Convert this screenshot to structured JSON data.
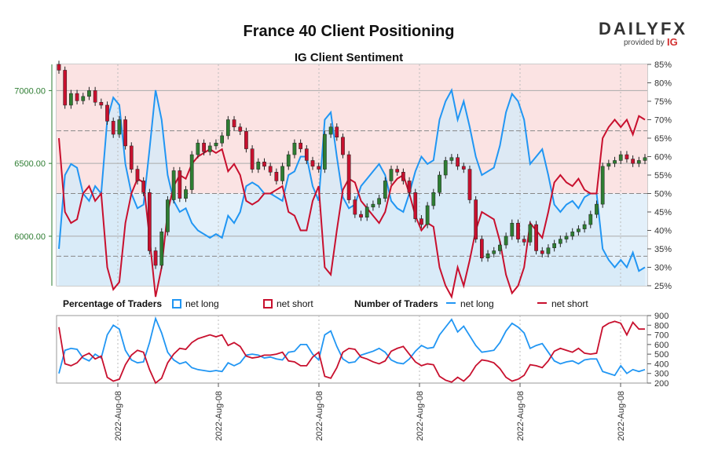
{
  "header": {
    "title": "France 40 Client Positioning",
    "subtitle": "IG Client Sentiment"
  },
  "logo": {
    "text": "DAILYFX",
    "tagline": "provided by",
    "brand": "IG"
  },
  "legend": {
    "pct_heading": "Percentage of Traders",
    "num_heading": "Number of Traders",
    "net_long": "net long",
    "net_short": "net short"
  },
  "colors": {
    "long": "#2196f3",
    "short": "#c8102e",
    "bull": "#2e7d32",
    "bear": "#c8102e",
    "short_zone": "#fbe3e3",
    "long_zone": "#e3f0fa"
  },
  "chart_data": [
    {
      "type": "candlestick",
      "price_axis": {
        "ticks": [
          6000,
          6500,
          7000
        ],
        "tick_labels": [
          "6000.00",
          "6500.00",
          "7000.00"
        ],
        "range": [
          5660,
          7180
        ]
      },
      "pct_axis": {
        "ticks": [
          25,
          30,
          35,
          40,
          45,
          50,
          55,
          60,
          65,
          70,
          75,
          80,
          85
        ],
        "tick_labels": [
          "25%",
          "30%",
          "35%",
          "40%",
          "45%",
          "50%",
          "55%",
          "60%",
          "65%",
          "70%",
          "75%",
          "80%",
          "85%"
        ],
        "range": [
          25,
          85
        ]
      },
      "x_tick_labels": [
        "2022-Aug-08",
        "2022-Aug-08",
        "2022-Aug-08",
        "2022-Aug-08",
        "2022-Aug-08",
        "2022-Aug-08"
      ],
      "close": [
        7140,
        6900,
        6980,
        6930,
        6960,
        7000,
        6920,
        6900,
        6790,
        6700,
        6800,
        6620,
        6460,
        6380,
        6300,
        5900,
        5800,
        6030,
        6250,
        6450,
        6260,
        6320,
        6560,
        6640,
        6580,
        6620,
        6640,
        6690,
        6800,
        6750,
        6720,
        6600,
        6460,
        6510,
        6480,
        6440,
        6380,
        6480,
        6560,
        6640,
        6600,
        6520,
        6480,
        6460,
        6700,
        6750,
        6680,
        6560,
        6250,
        6150,
        6130,
        6200,
        6220,
        6260,
        6380,
        6460,
        6440,
        6380,
        6300,
        6120,
        6080,
        6210,
        6300,
        6420,
        6520,
        6540,
        6480,
        6460,
        6250,
        5980,
        5850,
        5880,
        5900,
        5940,
        6000,
        6090,
        5980,
        5960,
        6080,
        5900,
        5880,
        5920,
        5950,
        5980,
        6000,
        6030,
        6050,
        6080,
        6150,
        6220,
        6480,
        6500,
        6520,
        6560,
        6530,
        6500,
        6520,
        6540
      ],
      "pct_long": [
        35,
        55,
        58,
        57,
        50,
        48,
        52,
        50,
        70,
        76,
        74,
        58,
        50,
        46,
        47,
        62,
        78,
        70,
        55,
        48,
        45,
        46,
        42,
        40,
        39,
        38,
        39,
        38,
        44,
        42,
        45,
        52,
        53,
        52,
        50,
        50,
        49,
        48,
        55,
        56,
        60,
        60,
        52,
        48,
        70,
        72,
        60,
        49,
        46,
        47,
        52,
        54,
        56,
        58,
        55,
        48,
        46,
        45,
        50,
        56,
        60,
        58,
        59,
        70,
        75,
        78,
        70,
        75,
        68,
        60,
        55,
        56,
        57,
        63,
        72,
        77,
        75,
        70,
        58,
        60,
        62,
        55,
        47,
        45,
        47,
        48,
        46,
        49,
        50,
        50,
        35,
        32,
        30,
        32,
        30,
        34,
        29,
        30
      ],
      "pct_short": [
        65,
        45,
        42,
        43,
        50,
        52,
        48,
        50,
        30,
        24,
        26,
        42,
        50,
        54,
        53,
        38,
        22,
        30,
        45,
        52,
        55,
        54,
        58,
        60,
        61,
        62,
        61,
        62,
        56,
        58,
        55,
        48,
        47,
        48,
        50,
        50,
        51,
        52,
        45,
        44,
        40,
        40,
        48,
        52,
        30,
        28,
        40,
        51,
        54,
        53,
        48,
        46,
        44,
        42,
        45,
        52,
        54,
        55,
        50,
        44,
        40,
        42,
        41,
        30,
        25,
        22,
        30,
        25,
        32,
        40,
        45,
        44,
        43,
        37,
        28,
        23,
        25,
        30,
        42,
        40,
        38,
        45,
        53,
        55,
        53,
        52,
        54,
        51,
        50,
        50,
        65,
        68,
        70,
        68,
        70,
        66,
        71,
        70
      ]
    },
    {
      "type": "line",
      "y_axis": {
        "ticks": [
          200,
          300,
          400,
          500,
          600,
          700,
          800,
          900
        ],
        "range": [
          200,
          900
        ]
      },
      "series": [
        {
          "name": "net long",
          "values": [
            300,
            540,
            560,
            550,
            460,
            430,
            500,
            460,
            700,
            800,
            760,
            540,
            440,
            410,
            420,
            620,
            870,
            720,
            520,
            440,
            400,
            420,
            360,
            340,
            330,
            320,
            330,
            320,
            410,
            380,
            410,
            490,
            500,
            490,
            460,
            470,
            450,
            440,
            520,
            530,
            600,
            600,
            500,
            440,
            700,
            740,
            580,
            450,
            410,
            420,
            490,
            510,
            530,
            560,
            520,
            440,
            410,
            400,
            450,
            530,
            590,
            560,
            570,
            700,
            780,
            860,
            730,
            790,
            690,
            590,
            520,
            530,
            540,
            620,
            740,
            820,
            780,
            720,
            560,
            590,
            610,
            520,
            430,
            400,
            420,
            430,
            400,
            440,
            450,
            450,
            320,
            300,
            280,
            380,
            300,
            340,
            320,
            340
          ]
        },
        {
          "name": "net short",
          "values": [
            780,
            400,
            380,
            410,
            480,
            510,
            450,
            480,
            260,
            220,
            240,
            390,
            490,
            540,
            520,
            340,
            200,
            250,
            410,
            500,
            560,
            550,
            620,
            660,
            680,
            700,
            680,
            700,
            590,
            620,
            580,
            480,
            460,
            470,
            490,
            490,
            500,
            520,
            430,
            420,
            380,
            380,
            470,
            520,
            270,
            250,
            360,
            520,
            560,
            550,
            470,
            450,
            420,
            400,
            430,
            530,
            560,
            580,
            500,
            420,
            380,
            400,
            390,
            270,
            230,
            210,
            260,
            220,
            280,
            380,
            440,
            430,
            410,
            350,
            260,
            220,
            240,
            280,
            390,
            380,
            360,
            430,
            530,
            560,
            540,
            520,
            560,
            510,
            500,
            510,
            780,
            820,
            840,
            820,
            700,
            830,
            760,
            760
          ]
        }
      ]
    }
  ]
}
